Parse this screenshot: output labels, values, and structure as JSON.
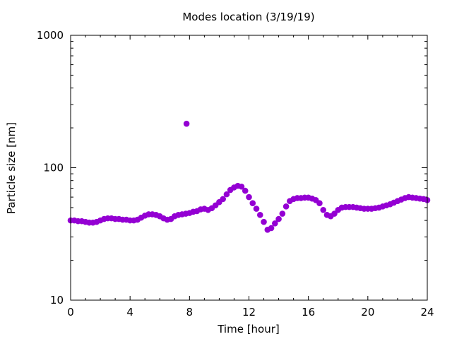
{
  "chart_data": {
    "type": "scatter",
    "title": "Modes location (3/19/19)",
    "xlabel": "Time [hour]",
    "ylabel": "Particle size [nm]",
    "xlim": [
      0,
      24
    ],
    "ylim": [
      10,
      1000
    ],
    "yscale": "log",
    "x_ticks": [
      "0",
      "4",
      "8",
      "12",
      "16",
      "20",
      "24"
    ],
    "y_ticks": [
      "10",
      "100",
      "1000"
    ],
    "grid": false,
    "legend": "none",
    "marker_color": "#9400d3",
    "series": [
      {
        "x": [
          0,
          0.25,
          0.5,
          0.75,
          1,
          1.25,
          1.5,
          1.75,
          2,
          2.25,
          2.5,
          2.75,
          3,
          3.25,
          3.5,
          3.75,
          4,
          4.25,
          4.5,
          4.75,
          5,
          5.25,
          5.5,
          5.75,
          6,
          6.25,
          6.5,
          6.75,
          7,
          7.25,
          7.5,
          7.75,
          7.8,
          8,
          8.25,
          8.5,
          8.75,
          9,
          9.25,
          9.5,
          9.75,
          10,
          10.25,
          10.5,
          10.75,
          11,
          11.25,
          11.5,
          11.75,
          12,
          12.25,
          12.5,
          12.75,
          13,
          13.25,
          13.5,
          13.75,
          14,
          14.25,
          14.5,
          14.75,
          15,
          15.25,
          15.5,
          15.75,
          16,
          16.25,
          16.5,
          16.75,
          17,
          17.25,
          17.5,
          17.75,
          18,
          18.25,
          18.5,
          18.75,
          19,
          19.25,
          19.5,
          19.75,
          20,
          20.25,
          20.5,
          20.75,
          21,
          21.25,
          21.5,
          21.75,
          22,
          22.25,
          22.5,
          22.75,
          23,
          23.25,
          23.5,
          23.75,
          24
        ],
        "y": [
          40,
          40,
          39.5,
          39.5,
          39,
          38.5,
          38.5,
          39,
          40,
          41,
          41.5,
          41.5,
          41,
          41,
          40.5,
          40.5,
          40,
          40,
          40.5,
          42,
          43.5,
          44.5,
          44.5,
          44,
          43,
          41.5,
          40.5,
          41,
          43,
          44,
          44.5,
          45,
          215,
          45.5,
          46.5,
          47,
          48.5,
          49,
          48,
          49.5,
          52,
          55,
          58,
          63,
          68,
          71,
          73,
          72,
          67,
          60,
          54,
          49,
          44,
          39,
          34,
          35,
          38,
          41,
          45,
          51,
          56,
          58,
          59,
          59,
          59.5,
          59.5,
          58.5,
          57,
          54,
          48,
          44,
          43,
          45,
          48,
          50,
          50.5,
          50.5,
          50.5,
          50,
          49.5,
          49,
          49,
          49,
          49.5,
          50,
          51,
          52,
          53,
          54.5,
          56,
          57.5,
          59,
          60,
          59.5,
          59,
          58.5,
          58,
          57
        ]
      }
    ]
  }
}
